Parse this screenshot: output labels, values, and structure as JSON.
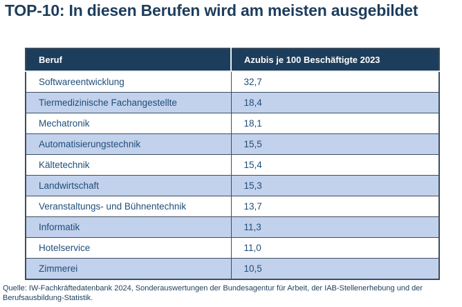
{
  "title": "TOP-10: In diesen Berufen wird am meisten ausgebildet",
  "table": {
    "headers": {
      "beruf": "Beruf",
      "value": "Azubis je 100 Beschäftigte 2023"
    },
    "rows": [
      {
        "beruf": "Softwareentwicklung",
        "value": "32,7"
      },
      {
        "beruf": "Tiermedizinische Fachangestellte",
        "value": "18,4"
      },
      {
        "beruf": "Mechatronik",
        "value": "18,1"
      },
      {
        "beruf": "Automatisierungstechnik",
        "value": "15,5"
      },
      {
        "beruf": "Kältetechnik",
        "value": "15,4"
      },
      {
        "beruf": "Landwirtschaft",
        "value": "15,3"
      },
      {
        "beruf": "Veranstaltungs- und Bühnentechnik",
        "value": "13,7"
      },
      {
        "beruf": "Informatik",
        "value": "11,3"
      },
      {
        "beruf": "Hotelservice",
        "value": "11,0"
      },
      {
        "beruf": "Zimmerei",
        "value": "10,5"
      }
    ]
  },
  "source": "Quelle: IW-Fachkräftedatenbank 2024, Sonderauswertungen der Bundesagentur für Arbeit, der IAB-Stellenerhebung und der Berufsausbildung-Statistik.",
  "colors": {
    "navy": "#1d3d5c",
    "row_alt_blue": "#c2d1ec",
    "cell_text": "#1f4e79",
    "table_border": "#3b4d5f",
    "header_text": "#ffffff"
  },
  "chart_data": {
    "type": "table",
    "title": "TOP-10: In diesen Berufen wird am meisten ausgebildet",
    "columns": [
      "Beruf",
      "Azubis je 100 Beschäftigte 2023"
    ],
    "categories": [
      "Softwareentwicklung",
      "Tiermedizinische Fachangestellte",
      "Mechatronik",
      "Automatisierungstechnik",
      "Kältetechnik",
      "Landwirtschaft",
      "Veranstaltungs- und Bühnentechnik",
      "Informatik",
      "Hotelservice",
      "Zimmerei"
    ],
    "values": [
      32.7,
      18.4,
      18.1,
      15.5,
      15.4,
      15.3,
      13.7,
      11.3,
      11.0,
      10.5
    ],
    "value_unit": "Azubis je 100 Beschäftigte",
    "year": "2023",
    "source": "Quelle: IW-Fachkräftedatenbank 2024, Sonderauswertungen der Bundesagentur für Arbeit, der IAB-Stellenerhebung und der Berufsausbildung-Statistik."
  }
}
